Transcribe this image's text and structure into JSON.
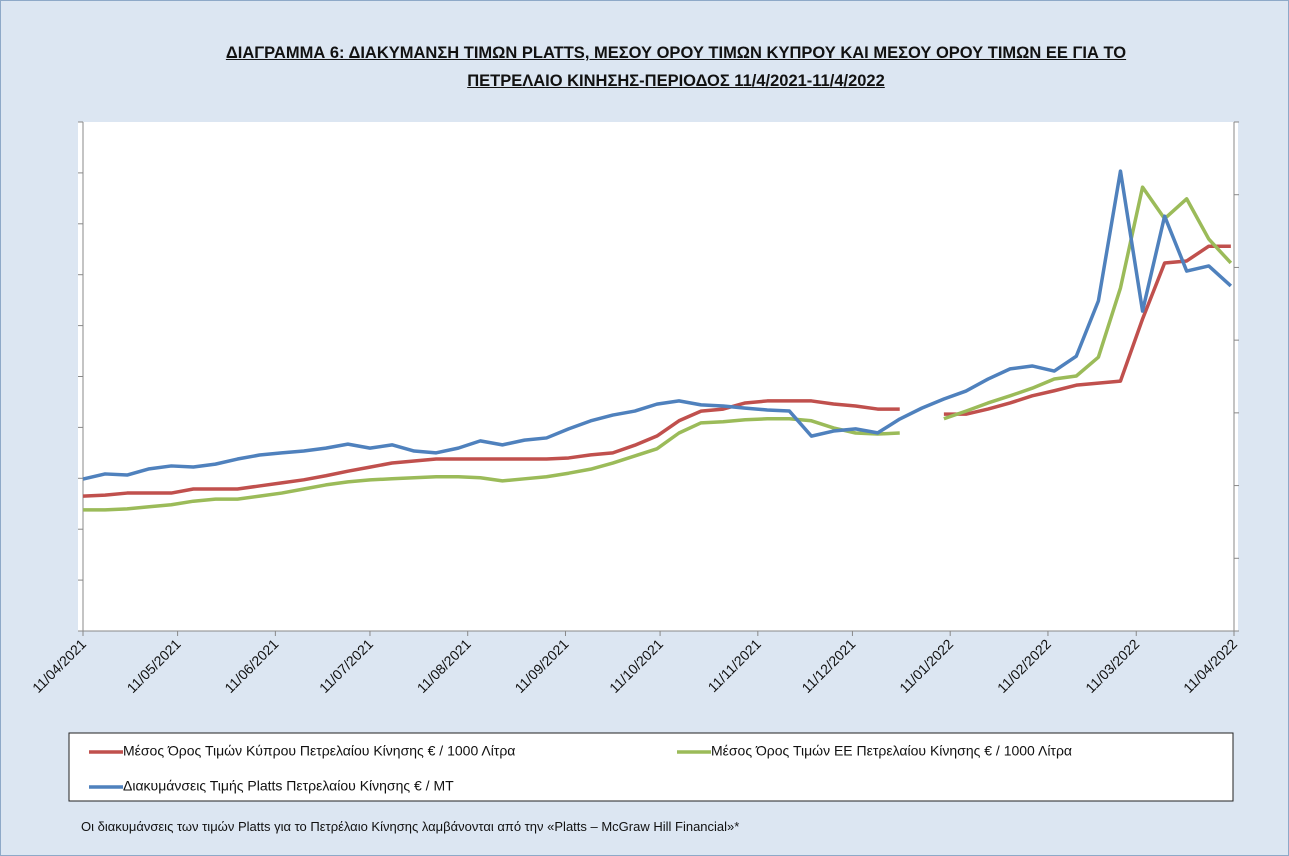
{
  "chart_data": {
    "type": "line",
    "title": "ΔΙΑΓΡΑΜΜΑ 6: ΔΙΑΚΥΜΑΝΣΗ ΤΙΜΩΝ PLATTS, ΜΕΣΟΥ ΟΡΟΥ ΤΙΜΩΝ ΚΥΠΡΟΥ ΚΑΙ ΜΕΣΟΥ ΟΡΟΥ ΤΙΜΩΝ ΕΕ ΓΙΑ ΤΟ ΠΕΤΡΕΛΑΙΟ ΚΙΝΗΣΗΣ-ΠΕΡΙΟΔΟΣ 11/4/2021-11/4/2022",
    "footnote": "Οι διακυμάνσεις των τιμών Platts για το Πετρέλαιο Κίνησης λαμβάνονται από την «Platts – McGraw Hill Financial»*",
    "x": [
      "2021-04-11",
      "2021-04-18",
      "2021-04-25",
      "2021-05-02",
      "2021-05-09",
      "2021-05-16",
      "2021-05-23",
      "2021-05-30",
      "2021-06-06",
      "2021-06-13",
      "2021-06-20",
      "2021-06-27",
      "2021-07-04",
      "2021-07-11",
      "2021-07-18",
      "2021-07-25",
      "2021-08-01",
      "2021-08-08",
      "2021-08-15",
      "2021-08-22",
      "2021-08-29",
      "2021-09-05",
      "2021-09-12",
      "2021-09-19",
      "2021-09-26",
      "2021-10-03",
      "2021-10-10",
      "2021-10-17",
      "2021-10-24",
      "2021-10-31",
      "2021-11-07",
      "2021-11-14",
      "2021-11-21",
      "2021-11-28",
      "2021-12-05",
      "2021-12-12",
      "2021-12-19",
      "2021-12-26",
      "2022-01-02",
      "2022-01-09",
      "2022-01-16",
      "2022-01-23",
      "2022-01-30",
      "2022-02-06",
      "2022-02-13",
      "2022-02-20",
      "2022-02-27",
      "2022-03-06",
      "2022-03-13",
      "2022-03-20",
      "2022-03-27",
      "2022-04-03",
      "2022-04-10"
    ],
    "series": [
      {
        "name": "Μέσος Όρος Τιμών Κύπρου Πετρελαίου Κίνησης  € / 1000 Λίτρα",
        "color": "#c0504d",
        "values": [
          1265,
          1267,
          1271,
          1271,
          1271,
          1279,
          1279,
          1279,
          1285,
          1291,
          1297,
          1305,
          1314,
          1322,
          1330,
          1334,
          1338,
          1338,
          1338,
          1338,
          1338,
          1338,
          1340,
          1346,
          1350,
          1365,
          1383,
          1413,
          1432,
          1436,
          1448,
          1452,
          1452,
          1452,
          1446,
          1442,
          1436,
          1436,
          null,
          1426,
          1426,
          1436,
          1448,
          1462,
          1472,
          1483,
          1487,
          1491,
          1613,
          1723,
          1727,
          1756,
          1756
        ]
      },
      {
        "name": "Μέσος Όρος Τιμών ΕΕ Πετρελαίου Κίνησης  € / 1000 Λίτρα",
        "color": "#9bbb59",
        "values": [
          1238,
          1238,
          1240,
          1244,
          1248,
          1255,
          1259,
          1259,
          1265,
          1271,
          1279,
          1287,
          1293,
          1297,
          1299,
          1301,
          1303,
          1303,
          1301,
          1295,
          1299,
          1303,
          1310,
          1318,
          1330,
          1344,
          1358,
          1389,
          1409,
          1411,
          1415,
          1417,
          1417,
          1413,
          1399,
          1389,
          1387,
          1389,
          null,
          1417,
          1432,
          1448,
          1462,
          1477,
          1495,
          1501,
          1538,
          1674,
          1872,
          1810,
          1849,
          1770,
          1723
        ]
      },
      {
        "name": "Διακυμάνσεις Τιμής Platts Πετρελαίου Κίνησης € / MT",
        "color": "#4f81bd",
        "axis": "y2",
        "values": [
          418,
          432,
          429,
          446,
          454,
          451,
          459,
          473,
          484,
          490,
          495,
          503,
          514,
          503,
          512,
          495,
          490,
          503,
          523,
          512,
          525,
          531,
          556,
          578,
          594,
          605,
          624,
          633,
          622,
          619,
          613,
          608,
          605,
          536,
          550,
          556,
          545,
          583,
          613,
          638,
          660,
          693,
          721,
          729,
          715,
          756,
          908,
          1265,
          880,
          1141,
          990,
          1004,
          949
        ]
      }
    ],
    "xlim": [
      "2021-04-11",
      "2022-04-11"
    ],
    "xticks": [
      {
        "value": "2021-04-11",
        "label": "11/04/2021"
      },
      {
        "value": "2021-05-11",
        "label": "11/05/2021"
      },
      {
        "value": "2021-06-11",
        "label": "11/06/2021"
      },
      {
        "value": "2021-07-11",
        "label": "11/07/2021"
      },
      {
        "value": "2021-08-11",
        "label": "11/08/2021"
      },
      {
        "value": "2021-09-11",
        "label": "11/09/2021"
      },
      {
        "value": "2021-10-11",
        "label": "11/10/2021"
      },
      {
        "value": "2021-11-11",
        "label": "11/11/2021"
      },
      {
        "value": "2021-12-11",
        "label": "11/12/2021"
      },
      {
        "value": "2022-01-11",
        "label": "11/01/2022"
      },
      {
        "value": "2022-02-11",
        "label": "11/02/2022"
      },
      {
        "value": "2022-03-11",
        "label": "11/03/2022"
      },
      {
        "value": "2022-04-11",
        "label": "11/04/2022"
      }
    ],
    "ylim": [
      1000,
      2000
    ],
    "yticks": [
      1000,
      1100,
      1200,
      1300,
      1400,
      1500,
      1600,
      1700,
      1800,
      1900,
      2000
    ],
    "y2lim": [
      0,
      1400
    ],
    "y2ticks": [
      0,
      200,
      400,
      600,
      800,
      1000,
      1200,
      1400
    ],
    "grid": false
  }
}
